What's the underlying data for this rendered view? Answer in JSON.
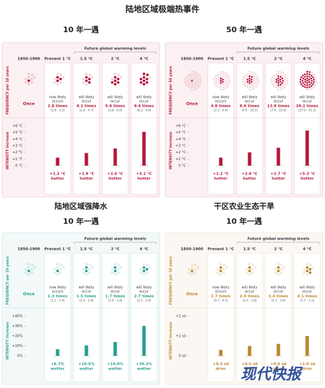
{
  "title": "陆地区域极端热事件",
  "watermark": "现代快报",
  "panels": [
    {
      "heading": "10 年一遇",
      "color": "#b5173a",
      "legend": "Future global warming levels",
      "columns": [
        "1850-1900",
        "Present 1 °C",
        "1.5 °C",
        "2 °C",
        "4 °C"
      ],
      "frequency_axis": "FREQUENCY per 10 years",
      "once": "Once",
      "occur_texts": [
        [
          "now likely",
          "occurs"
        ],
        [
          "will likely",
          "occur"
        ],
        [
          "will likely",
          "occur"
        ],
        [
          "will likely",
          "occur"
        ]
      ],
      "frequency": {
        "values": [
          2.8,
          4.1,
          5.6,
          9.4
        ],
        "value_labels": [
          "2.8 times",
          "4.1 times",
          "5.6 times",
          "9.4 times"
        ],
        "ranges": [
          "(1.8 - 3.2)",
          "(2.8 - 4.7)",
          "(3.8 - 6.0)",
          "(8.3 - 9.6)"
        ]
      },
      "intensity_axis": "INTENSITY increase",
      "intensity": {
        "values": [
          1.2,
          1.9,
          2.6,
          5.1
        ],
        "value_labels": [
          "+1.2 °C",
          "+1.9 °C",
          "+2.6 °C",
          "+5.1 °C"
        ],
        "suffix": "hotter",
        "ylim": [
          0,
          6
        ],
        "yticks": [
          {
            "value": 0,
            "label": "0 °C"
          },
          {
            "value": 1,
            "label": "+1 °C"
          },
          {
            "value": 2,
            "label": "+2 °C"
          },
          {
            "value": 3,
            "label": "+3 °C"
          },
          {
            "value": 4,
            "label": "+4 °C"
          },
          {
            "value": 5,
            "label": "+5 °C"
          },
          {
            "value": 6,
            "label": "+6 °C"
          }
        ]
      }
    },
    {
      "heading": "50 年一遇",
      "color": "#b5173a",
      "legend": "Future global warming levels",
      "columns": [
        "1850-1900",
        "Present 1 °C",
        "1.5 °C",
        "2 °C",
        "4 °C"
      ],
      "frequency_axis": "FREQUENCY per 50 years",
      "once": "Once",
      "occur_texts": [
        [
          "now likely",
          "occurs"
        ],
        [
          "will likely",
          "occur"
        ],
        [
          "will likely",
          "occur"
        ],
        [
          "will likely",
          "occur"
        ]
      ],
      "frequency": {
        "values": [
          4.8,
          8.6,
          13.9,
          39.2
        ],
        "value_labels": [
          "4.8 times",
          "8.6 times",
          "13.9 times",
          "39.2 times"
        ],
        "ranges": [
          "(2.3 - 6.4)",
          "(4.9 - 10.5)",
          "(7.9 - 15.6)",
          "(27.0 - 41.2)"
        ]
      },
      "intensity_axis": "INTENSITY increase",
      "intensity": {
        "values": [
          1.2,
          2.0,
          2.7,
          5.3
        ],
        "value_labels": [
          "+1.2 °C",
          "+2.0 °C",
          "+2.7 °C",
          "+5.3 °C"
        ],
        "suffix": "hotter",
        "ylim": [
          0,
          6
        ],
        "yticks": [
          {
            "value": 0,
            "label": "0 °C"
          },
          {
            "value": 1,
            "label": "+1 °C"
          },
          {
            "value": 2,
            "label": "+2 °C"
          },
          {
            "value": 3,
            "label": "+3 °C"
          },
          {
            "value": 4,
            "label": "+4 °C"
          },
          {
            "value": 5,
            "label": "+5 °C"
          },
          {
            "value": 6,
            "label": "+6 °C"
          }
        ]
      }
    },
    {
      "title": "陆地区域强降水",
      "heading": "10 年一遇",
      "color": "#2a9d8f",
      "legend": "Future global warming levels",
      "columns": [
        "1850-1900",
        "Present 1 °C",
        "1.5 °C",
        "2 °C",
        "4 °C"
      ],
      "frequency_axis": "FREQUENCY per 10 years",
      "once": "Once",
      "occur_texts": [
        [
          "now likely",
          "occurs"
        ],
        [
          "will likely",
          "occur"
        ],
        [
          "will likely",
          "occur"
        ],
        [
          "will likely",
          "occur"
        ]
      ],
      "frequency": {
        "values": [
          1.3,
          1.5,
          1.7,
          2.7
        ],
        "value_labels": [
          "1.3 times",
          "1.5 times",
          "1.7 times",
          "2.7 times"
        ],
        "ranges": [
          "(1.2 - 1.4)",
          "(1.4 - 1.6)",
          "(1.6 - 1.8)",
          "(2.3 - 2.9)"
        ]
      },
      "intensity_axis": "INTENSITY increase",
      "intensity": {
        "values": [
          6.7,
          10.5,
          14.0,
          30.2
        ],
        "value_labels": [
          "+6.7%",
          "+10.5%",
          "+14.0%",
          "+30.2%"
        ],
        "suffix": "wetter",
        "ylim": [
          0,
          40
        ],
        "yticks": [
          {
            "value": 0,
            "label": "0%"
          },
          {
            "value": 10,
            "label": "+10%"
          },
          {
            "value": 20,
            "label": "+20%"
          },
          {
            "value": 30,
            "label": "+30%"
          },
          {
            "value": 40,
            "label": "+40%"
          }
        ]
      }
    },
    {
      "title": "干区农业生态干旱",
      "heading": "10 年一遇",
      "color": "#b8862b",
      "legend": "Future global warming levels",
      "columns": [
        "1850-1900",
        "Present 1 °C",
        "1.5 °C",
        "2 °C",
        "4 °C"
      ],
      "frequency_axis": "FREQUENCY per 10 years",
      "once": "Once",
      "occur_texts": [
        [
          "now likely",
          "occurs"
        ],
        [
          "will likely",
          "occur"
        ],
        [
          "will likely",
          "occur"
        ],
        [
          "will likely",
          "occur"
        ]
      ],
      "frequency": {
        "values": [
          1.7,
          2.0,
          2.4,
          4.1
        ],
        "value_labels": [
          "1.7 times",
          "2.0 times",
          "2.4 times",
          "4.1 times"
        ],
        "ranges": [
          "(0.7 - 4.1)",
          "(1.0 - 2.8)",
          "(1.3 - 3.6)",
          "(1.7 - 7.2)"
        ]
      },
      "intensity_axis": "INTENSITY increase",
      "intensity": {
        "values": [
          0.3,
          0.5,
          0.6,
          1.0
        ],
        "value_labels": [
          "+0.3 sd",
          "+0.5 sd",
          "+0.6 sd",
          "+1.0 sd"
        ],
        "suffix": "drier",
        "ylim": [
          0,
          2
        ],
        "yticks": [
          {
            "value": 0,
            "label": "0 sd"
          },
          {
            "value": 1,
            "label": "+1 sd"
          },
          {
            "value": 2,
            "label": "+2 sd"
          }
        ]
      }
    }
  ]
}
